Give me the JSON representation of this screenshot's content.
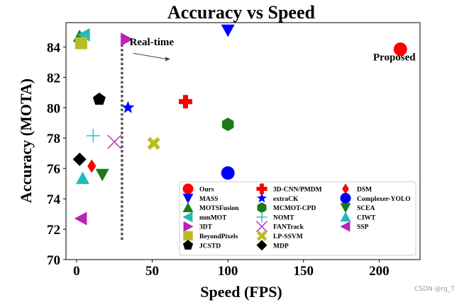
{
  "watermark": "CSDN @rg_T",
  "chart_data": {
    "type": "scatter",
    "title": "Accuracy vs Speed",
    "xlabel": "Speed (FPS)",
    "ylabel": "Accuracy (MOTA)",
    "xlim": [
      -7,
      227
    ],
    "ylim": [
      70,
      85.6
    ],
    "xticks": [
      0,
      50,
      100,
      150,
      200
    ],
    "yticks": [
      70,
      72,
      74,
      76,
      78,
      80,
      82,
      84
    ],
    "grid": false,
    "legend_position": "lower-right",
    "annotations": [
      {
        "text": "Proposed",
        "x": 196,
        "y": 83.1
      },
      {
        "text": "Real-time",
        "x": 35,
        "y": 84.1,
        "arrow_to": [
          62,
          83.2
        ]
      }
    ],
    "reference_lines": [
      {
        "name": "real-time threshold",
        "x": 30,
        "y_from": 71.3,
        "y_to": 84.9,
        "style": "dotted"
      }
    ],
    "series": [
      {
        "name": "Ours",
        "marker": "circle",
        "color": "#ff0000",
        "points": [
          [
            214,
            83.85
          ]
        ]
      },
      {
        "name": "MASS",
        "marker": "triangle-down",
        "color": "#0000ff",
        "points": [
          [
            100,
            85.1
          ]
        ]
      },
      {
        "name": "MOTSFusion",
        "marker": "triangle-up",
        "color": "#1a7a1a",
        "points": [
          [
            2,
            84.7
          ]
        ]
      },
      {
        "name": "mmMOT",
        "marker": "triangle-left",
        "color": "#22bbbb",
        "points": [
          [
            5,
            84.8
          ]
        ]
      },
      {
        "name": "3DT",
        "marker": "triangle-right",
        "color": "#bb22bb",
        "points": [
          [
            33,
            84.5
          ]
        ]
      },
      {
        "name": "BeyondPixels",
        "marker": "square",
        "color": "#bbbb22",
        "points": [
          [
            3,
            84.25
          ]
        ]
      },
      {
        "name": "JCSTD",
        "marker": "pentagon",
        "color": "#000000",
        "points": [
          [
            15,
            80.55
          ]
        ]
      },
      {
        "name": "3D-CNN/PMDM",
        "marker": "plus",
        "color": "#ff0000",
        "points": [
          [
            72,
            80.4
          ]
        ]
      },
      {
        "name": "extraCK",
        "marker": "star",
        "color": "#0000ff",
        "points": [
          [
            34,
            80
          ]
        ]
      },
      {
        "name": "MCMOT-CPD",
        "marker": "hexagon",
        "color": "#1a7a1a",
        "points": [
          [
            100,
            78.9
          ]
        ]
      },
      {
        "name": "NOMT",
        "marker": "thin-plus",
        "color": "#22bbbb",
        "points": [
          [
            11,
            78.15
          ]
        ]
      },
      {
        "name": "FANTrack",
        "marker": "x",
        "color": "#bb22bb",
        "points": [
          [
            25,
            77.75
          ]
        ]
      },
      {
        "name": "LP-SSVM",
        "marker": "thick-x",
        "color": "#bbbb22",
        "points": [
          [
            51,
            77.65
          ]
        ]
      },
      {
        "name": "MDP",
        "marker": "diamond",
        "color": "#000000",
        "points": [
          [
            2,
            76.6
          ]
        ]
      },
      {
        "name": "DSM",
        "marker": "thin-diamond",
        "color": "#ff0000",
        "points": [
          [
            10,
            76.15
          ]
        ]
      },
      {
        "name": "Complexer-YOLO",
        "marker": "circle",
        "color": "#0000ff",
        "points": [
          [
            100,
            75.7
          ]
        ]
      },
      {
        "name": "SCEA",
        "marker": "triangle-down",
        "color": "#1a7a1a",
        "points": [
          [
            17,
            75.6
          ]
        ]
      },
      {
        "name": "CIWT",
        "marker": "triangle-up",
        "color": "#22bbbb",
        "points": [
          [
            4,
            75.35
          ]
        ]
      },
      {
        "name": "SSP",
        "marker": "triangle-left",
        "color": "#bb22bb",
        "points": [
          [
            3,
            72.7
          ]
        ]
      }
    ]
  }
}
